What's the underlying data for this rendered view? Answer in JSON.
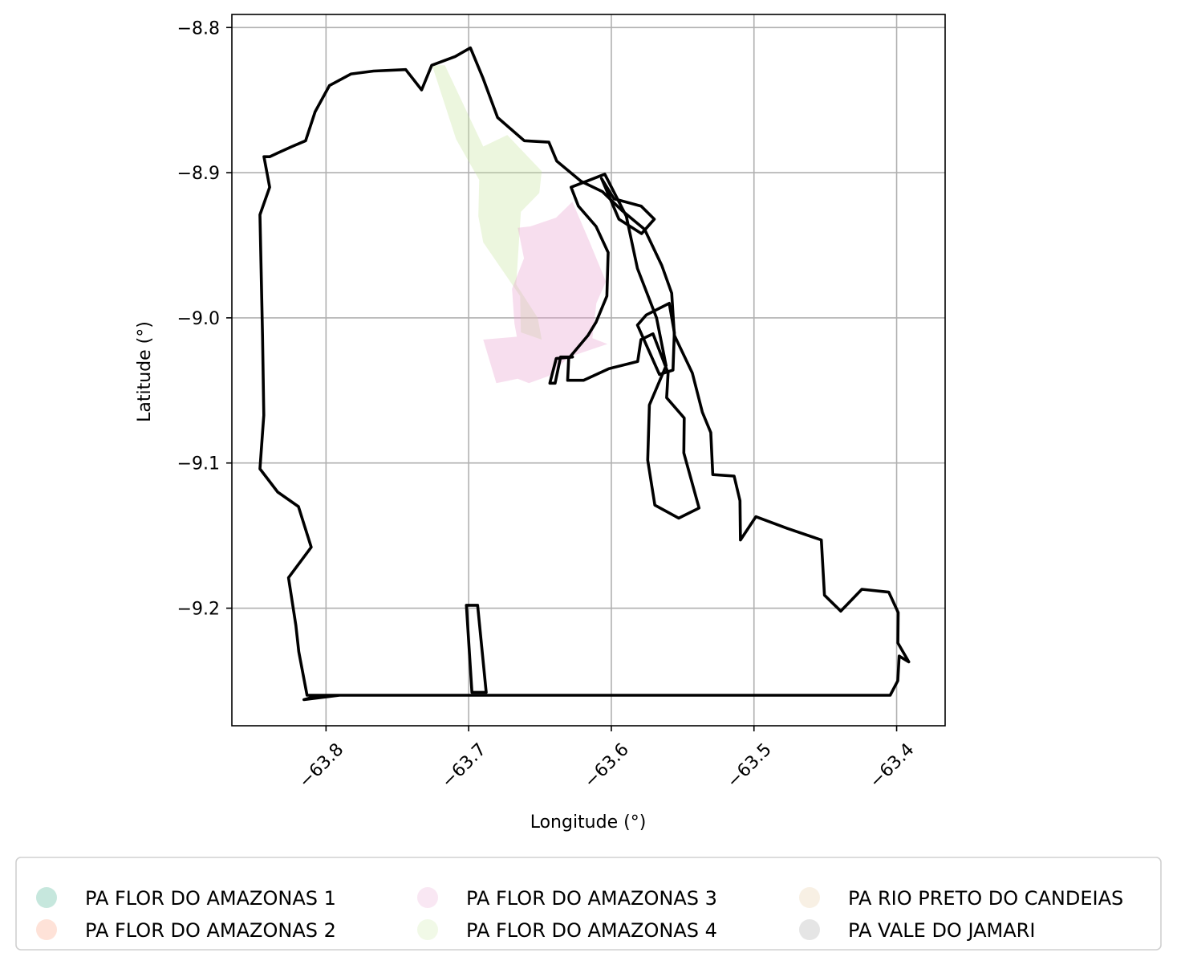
{
  "chart_data": {
    "type": "map",
    "xlabel": "Longitude (°)",
    "ylabel": "Latitude (°)",
    "xlim": [
      -63.866,
      -63.366
    ],
    "ylim": [
      -9.281,
      -8.791
    ],
    "xticks": [
      -63.8,
      -63.7,
      -63.6,
      -63.5,
      -63.4
    ],
    "xtick_labels": [
      "−63.8",
      "−63.7",
      "−63.6",
      "−63.5",
      "−63.4"
    ],
    "yticks": [
      -8.8,
      -8.9,
      -9.0,
      -9.1,
      -9.2
    ],
    "ytick_labels": [
      "−8.8",
      "−8.9",
      "−9.0",
      "−9.1",
      "−9.2"
    ],
    "grid": true,
    "legend_placement": "bottom-center",
    "legend": [
      {
        "name": "PA FLOR DO AMAZONAS 1",
        "color": "#1b9e77"
      },
      {
        "name": "PA FLOR DO AMAZONAS 2",
        "color": "#fc8d62"
      },
      {
        "name": "PA FLOR DO AMAZONAS 3",
        "color": "#e7a1cf"
      },
      {
        "name": "PA FLOR DO AMAZONAS 4",
        "color": "#c8e6a0"
      },
      {
        "name": "PA RIO PRETO DO CANDEIAS",
        "color": "#e5c494"
      },
      {
        "name": "PA VALE DO JAMARI",
        "color": "#999999"
      }
    ],
    "outline_color": "#000000",
    "polygons": [
      {
        "name": "PA FLOR DO AMAZONAS 4",
        "fill": "#c8e6a0",
        "opacity": 0.35,
        "coords": [
          [
            -63.7257,
            -8.826
          ],
          [
            -63.7167,
            -8.826
          ],
          [
            -63.6898,
            -8.882
          ],
          [
            -63.6729,
            -8.874
          ],
          [
            -63.6488,
            -8.899
          ],
          [
            -63.6505,
            -8.914
          ],
          [
            -63.6634,
            -8.927
          ],
          [
            -63.6667,
            -8.977
          ],
          [
            -63.6516,
            -9.0
          ],
          [
            -63.6488,
            -9.015
          ],
          [
            -63.6634,
            -9.01
          ],
          [
            -63.6639,
            -8.985
          ],
          [
            -63.6898,
            -8.948
          ],
          [
            -63.6932,
            -8.93
          ],
          [
            -63.6926,
            -8.905
          ],
          [
            -63.7088,
            -8.877
          ]
        ]
      },
      {
        "name": "PA FLOR DO AMAZONAS 3",
        "fill": "#e7a1cf",
        "opacity": 0.35,
        "coords": [
          [
            -63.6656,
            -8.938
          ],
          [
            -63.6612,
            -8.959
          ],
          [
            -63.6696,
            -8.98
          ],
          [
            -63.6679,
            -9.004
          ],
          [
            -63.6662,
            -9.013
          ],
          [
            -63.6898,
            -9.015
          ],
          [
            -63.6806,
            -9.045
          ],
          [
            -63.6656,
            -9.042
          ],
          [
            -63.6578,
            -9.045
          ],
          [
            -63.6437,
            -9.04
          ],
          [
            -63.6297,
            -9.027
          ],
          [
            -63.6027,
            -9.018
          ],
          [
            -63.6133,
            -9.014
          ],
          [
            -63.6105,
            -8.99
          ],
          [
            -63.6038,
            -8.975
          ],
          [
            -63.6151,
            -8.948
          ],
          [
            -63.6273,
            -8.92
          ],
          [
            -63.6387,
            -8.931
          ],
          [
            -63.6567,
            -8.937
          ]
        ]
      }
    ],
    "outlines": [
      [
        [
          -63.8395,
          -8.889
        ],
        [
          -63.8329,
          -8.886
        ],
        [
          -63.8238,
          -8.882
        ],
        [
          -63.8143,
          -8.878
        ],
        [
          -63.8076,
          -8.858
        ],
        [
          -63.7976,
          -8.84
        ],
        [
          -63.7824,
          -8.832
        ],
        [
          -63.7667,
          -8.83
        ],
        [
          -63.7441,
          -8.829
        ],
        [
          -63.733,
          -8.843
        ],
        [
          -63.7259,
          -8.826
        ],
        [
          -63.7095,
          -8.82
        ],
        [
          -63.6988,
          -8.814
        ],
        [
          -63.6899,
          -8.835
        ],
        [
          -63.6797,
          -8.862
        ],
        [
          -63.661,
          -8.878
        ],
        [
          -63.6438,
          -8.879
        ],
        [
          -63.6383,
          -8.892
        ],
        [
          -63.6212,
          -8.906
        ],
        [
          -63.6063,
          -8.913
        ],
        [
          -63.5926,
          -8.926
        ],
        [
          -63.5767,
          -8.939
        ],
        [
          -63.5646,
          -8.964
        ],
        [
          -63.5577,
          -8.983
        ],
        [
          -63.5558,
          -9.012
        ],
        [
          -63.5432,
          -9.038
        ],
        [
          -63.5362,
          -9.065
        ],
        [
          -63.5303,
          -9.079
        ],
        [
          -63.5289,
          -9.108
        ],
        [
          -63.5139,
          -9.109
        ],
        [
          -63.5098,
          -9.126
        ],
        [
          -63.5095,
          -9.153
        ],
        [
          -63.4987,
          -9.137
        ],
        [
          -63.4768,
          -9.145
        ],
        [
          -63.4528,
          -9.153
        ],
        [
          -63.4506,
          -9.191
        ],
        [
          -63.4392,
          -9.202
        ],
        [
          -63.4244,
          -9.187
        ],
        [
          -63.4055,
          -9.189
        ],
        [
          -63.3989,
          -9.203
        ],
        [
          -63.3991,
          -9.224
        ],
        [
          -63.3915,
          -9.237
        ],
        [
          -63.3982,
          -9.233
        ],
        [
          -63.3992,
          -9.25
        ],
        [
          -63.4045,
          -9.26
        ],
        [
          -63.7059,
          -9.26
        ],
        [
          -63.8046,
          -9.26
        ],
        [
          -63.8155,
          -9.263
        ],
        [
          -63.7906,
          -9.26
        ],
        [
          -63.8133,
          -9.26
        ],
        [
          -63.8191,
          -9.23
        ],
        [
          -63.8211,
          -9.212
        ],
        [
          -63.8263,
          -9.179
        ],
        [
          -63.8104,
          -9.158
        ],
        [
          -63.8193,
          -9.13
        ],
        [
          -63.8339,
          -9.12
        ],
        [
          -63.8463,
          -9.104
        ],
        [
          -63.8436,
          -9.067
        ],
        [
          -63.8445,
          -9.012
        ],
        [
          -63.8463,
          -8.929
        ],
        [
          -63.8395,
          -8.91
        ],
        [
          -63.8435,
          -8.889
        ]
      ],
      [
        [
          -63.6282,
          -8.91
        ],
        [
          -63.6046,
          -8.901
        ],
        [
          -63.5895,
          -8.93
        ],
        [
          -63.5817,
          -8.966
        ],
        [
          -63.5683,
          -9.0
        ],
        [
          -63.5616,
          -9.033
        ],
        [
          -63.5733,
          -9.06
        ],
        [
          -63.5745,
          -9.098
        ],
        [
          -63.5695,
          -9.129
        ],
        [
          -63.5527,
          -9.138
        ],
        [
          -63.5385,
          -9.131
        ],
        [
          -63.5492,
          -9.093
        ],
        [
          -63.5489,
          -9.069
        ],
        [
          -63.5612,
          -9.055
        ],
        [
          -63.5602,
          -9.038
        ],
        [
          -63.5708,
          -9.011
        ],
        [
          -63.5792,
          -9.015
        ],
        [
          -63.5815,
          -9.03
        ],
        [
          -63.6017,
          -9.035
        ],
        [
          -63.6195,
          -9.043
        ],
        [
          -63.6306,
          -9.043
        ],
        [
          -63.6299,
          -9.028
        ],
        [
          -63.6163,
          -9.012
        ],
        [
          -63.6107,
          -9.003
        ],
        [
          -63.6031,
          -8.985
        ],
        [
          -63.6022,
          -8.955
        ],
        [
          -63.6107,
          -8.937
        ],
        [
          -63.6231,
          -8.923
        ]
      ],
      [
        [
          -63.5755,
          -8.998
        ],
        [
          -63.5594,
          -8.99
        ],
        [
          -63.5558,
          -9.01
        ],
        [
          -63.5568,
          -9.036
        ],
        [
          -63.5663,
          -9.039
        ],
        [
          -63.5817,
          -9.005
        ]
      ],
      [
        [
          -63.6069,
          -8.904
        ],
        [
          -63.5981,
          -8.918
        ],
        [
          -63.5791,
          -8.923
        ],
        [
          -63.5699,
          -8.932
        ],
        [
          -63.5788,
          -8.942
        ],
        [
          -63.5947,
          -8.932
        ]
      ],
      [
        [
          -63.6272,
          -9.027
        ],
        [
          -63.6356,
          -9.027
        ],
        [
          -63.6394,
          -9.045
        ],
        [
          -63.6431,
          -9.045
        ],
        [
          -63.6386,
          -9.028
        ]
      ],
      [
        [
          -63.7016,
          -9.198
        ],
        [
          -63.6937,
          -9.198
        ],
        [
          -63.6877,
          -9.258
        ],
        [
          -63.6977,
          -9.258
        ]
      ]
    ]
  }
}
